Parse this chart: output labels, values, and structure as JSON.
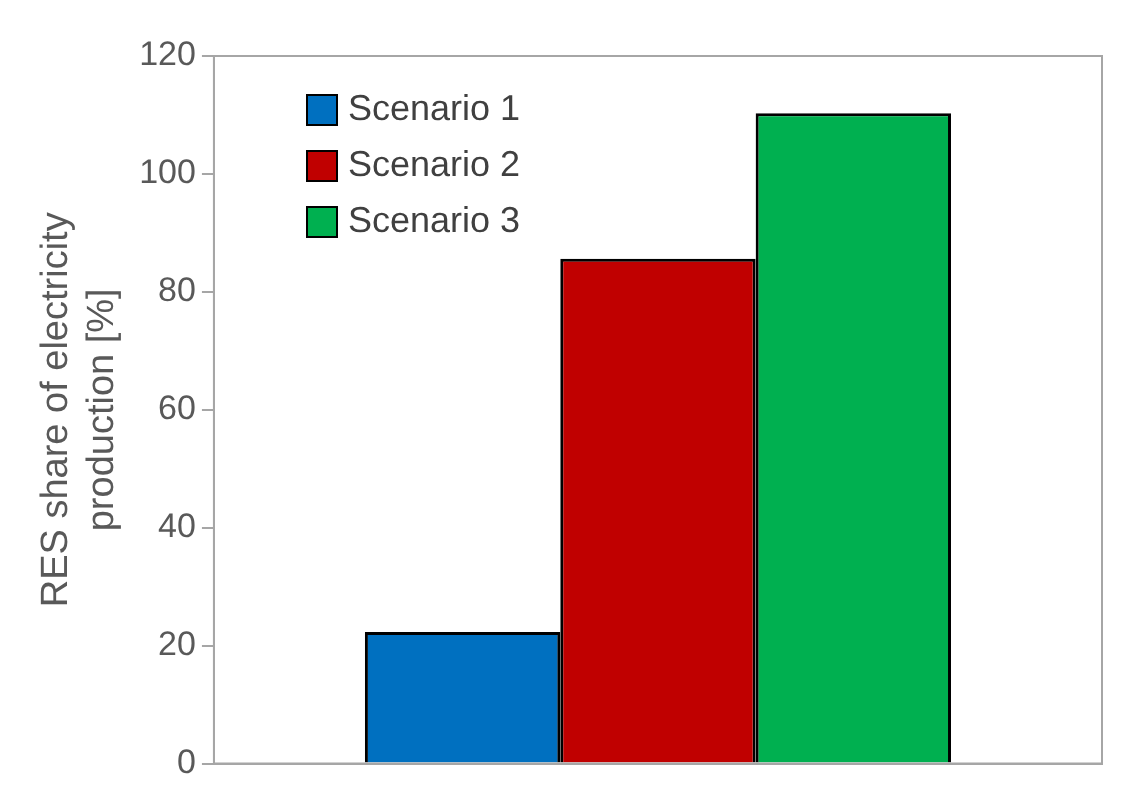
{
  "chart_data": {
    "type": "bar",
    "ylabel": "RES share of electricity production [%]",
    "categories": [
      null
    ],
    "series": [
      {
        "name": "Scenario 1",
        "color": "#0070c0",
        "values": [
          22.3
        ]
      },
      {
        "name": "Scenario 2",
        "color": "#c00000",
        "values": [
          85.6
        ]
      },
      {
        "name": "Scenario 3",
        "color": "#00b050",
        "values": [
          110.3
        ]
      }
    ],
    "ylim": [
      0,
      120
    ],
    "yticks": [
      0,
      20,
      40,
      60,
      80,
      100,
      120
    ],
    "grid": false,
    "legend": "top left"
  }
}
